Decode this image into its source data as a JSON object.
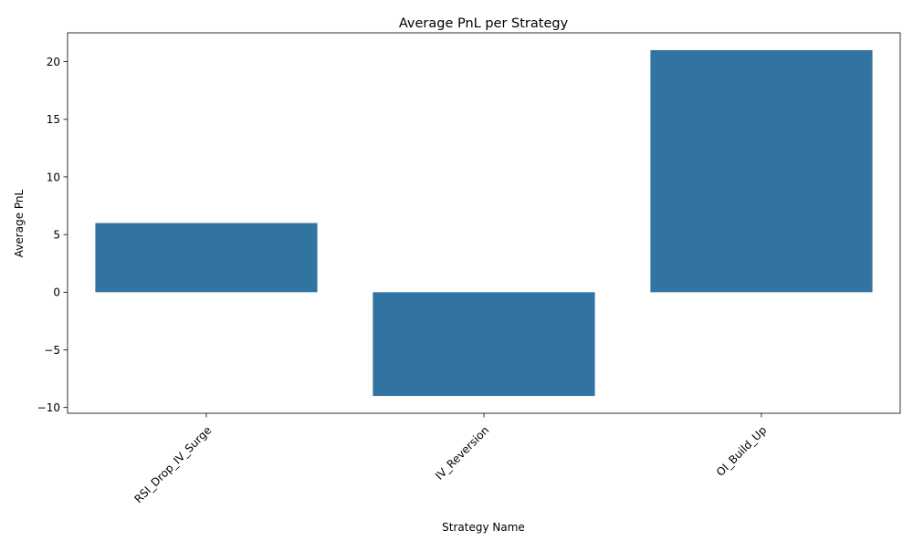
{
  "chart_data": {
    "type": "bar",
    "title": "Average PnL per Strategy",
    "xlabel": "Strategy Name",
    "ylabel": "Average PnL",
    "categories": [
      "RSI_Drop_IV_Surge",
      "IV_Reversion",
      "OI_Build_Up"
    ],
    "values": [
      6,
      -9,
      21
    ],
    "ylim": [
      -10.5,
      22.5
    ],
    "yticks": [
      -10,
      -5,
      0,
      5,
      10,
      15,
      20
    ],
    "bar_color": "#3274a1",
    "grid": false,
    "legend": "none"
  }
}
